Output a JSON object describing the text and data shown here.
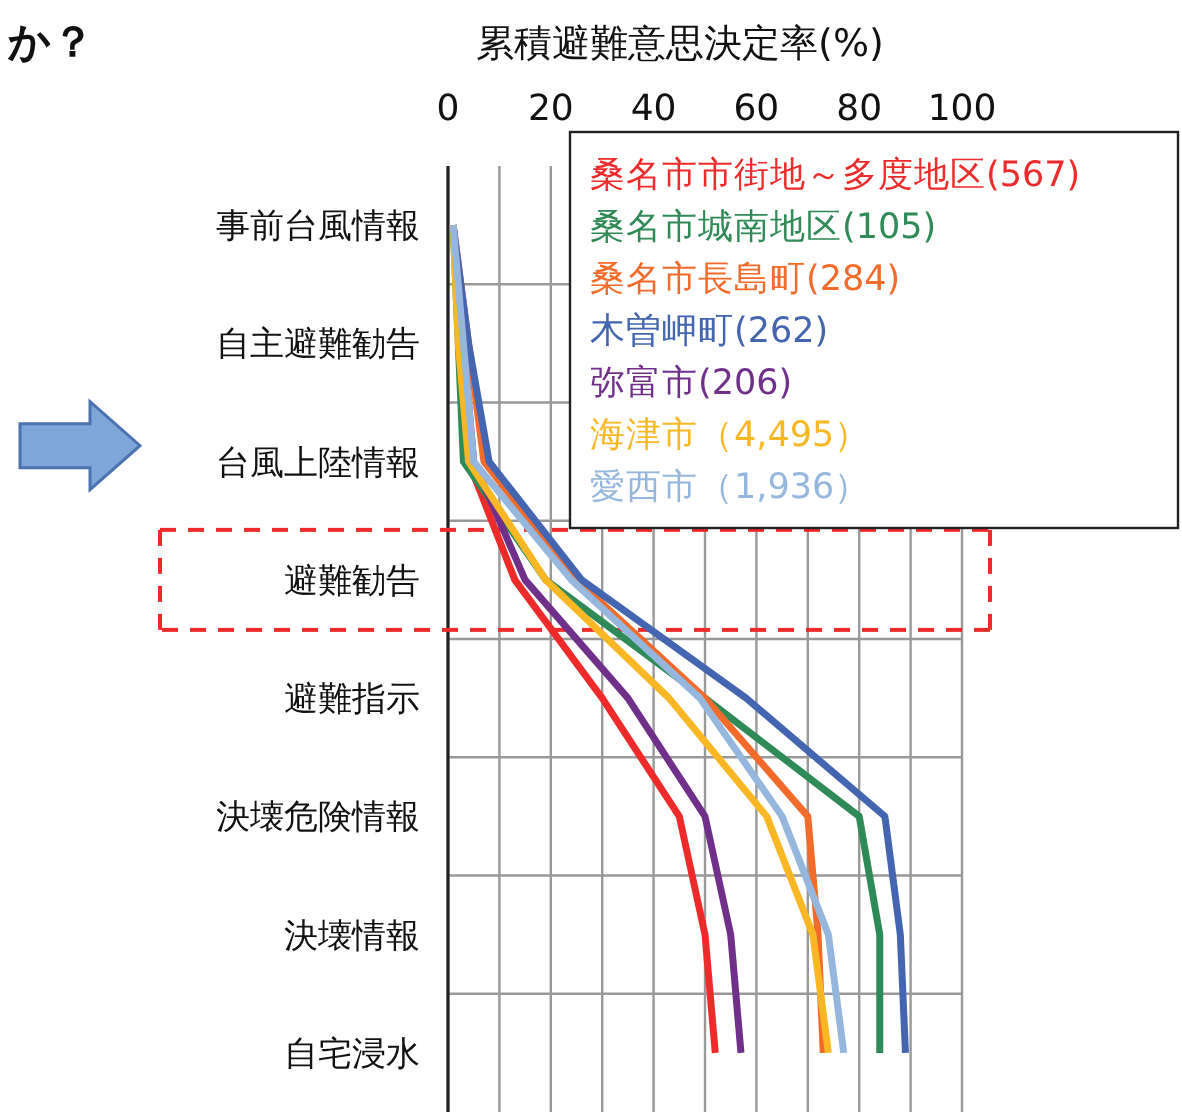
{
  "chart_data": {
    "type": "line",
    "title": "か？",
    "xlabel": "累積避難意思決定率(%)",
    "categories": [
      "事前台風情報",
      "自主避難勧告",
      "台風上陸情報",
      "避難勧告",
      "避難指示",
      "決壊危険情報",
      "決壊情報",
      "自宅浸水"
    ],
    "xlim": [
      0,
      100
    ],
    "xticks": [
      0,
      {
        "value": 10,
        "label": null
      },
      20,
      {
        "value": 30,
        "label": null
      },
      40,
      {
        "value": 50,
        "label": null
      },
      60,
      {
        "value": 70,
        "label": null
      },
      80,
      {
        "value": 90,
        "label": null
      },
      100
    ],
    "grid": true,
    "orientation": "horizontal",
    "series": [
      {
        "name": "桑名市市街地～多度地区(567)",
        "color": "#ee2a2a",
        "values": [
          1,
          3,
          4,
          13,
          30,
          45,
          50,
          52
        ]
      },
      {
        "name": "桑名市城南地区(105)",
        "color": "#2e8b57",
        "values": [
          1,
          2,
          3,
          19,
          50,
          80,
          84,
          84
        ]
      },
      {
        "name": "桑名市長島町(284)",
        "color": "#f26b2a",
        "values": [
          1,
          4,
          7,
          25,
          50,
          70,
          72,
          73
        ]
      },
      {
        "name": "木曽岬町(262)",
        "color": "#4466b0",
        "values": [
          1,
          4,
          8,
          26,
          58,
          85,
          88,
          89
        ]
      },
      {
        "name": "弥富市(206)",
        "color": "#70308a",
        "values": [
          1,
          3,
          5,
          15,
          35,
          50,
          55,
          57
        ]
      },
      {
        "name": "海津市（4,495）",
        "color": "#f9b723",
        "values": [
          1,
          2,
          4,
          19,
          43,
          62,
          71,
          74
        ]
      },
      {
        "name": "愛西市（1,936）",
        "color": "#95b7dd",
        "values": [
          1,
          3,
          5,
          24,
          49,
          65,
          74,
          77
        ]
      }
    ]
  }
}
